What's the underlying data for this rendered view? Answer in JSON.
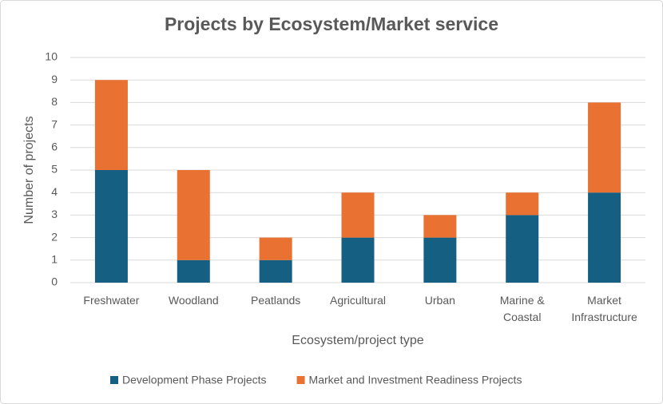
{
  "chart_data": {
    "type": "stacked_bar",
    "title": "Projects by Ecosystem/Market service",
    "x_label": "Ecosystem/project type",
    "y_label": "Number of projects",
    "categories": [
      "Freshwater",
      "Woodland",
      "Peatlands",
      "Agricultural",
      "Urban",
      "Marine & Coastal",
      "Market Infrastructure"
    ],
    "series": [
      {
        "name": "Development Phase Projects",
        "color": "#156082",
        "values": [
          5,
          1,
          1,
          2,
          2,
          3,
          4
        ]
      },
      {
        "name": "Market and Investment Readiness Projects",
        "color": "#e97132",
        "values": [
          4,
          4,
          1,
          2,
          1,
          1,
          4
        ]
      }
    ],
    "ylim": [
      0,
      10
    ],
    "yticks": [
      0,
      1,
      2,
      3,
      4,
      5,
      6,
      7,
      8,
      9,
      10
    ],
    "grid": true,
    "legend": "bottom"
  }
}
